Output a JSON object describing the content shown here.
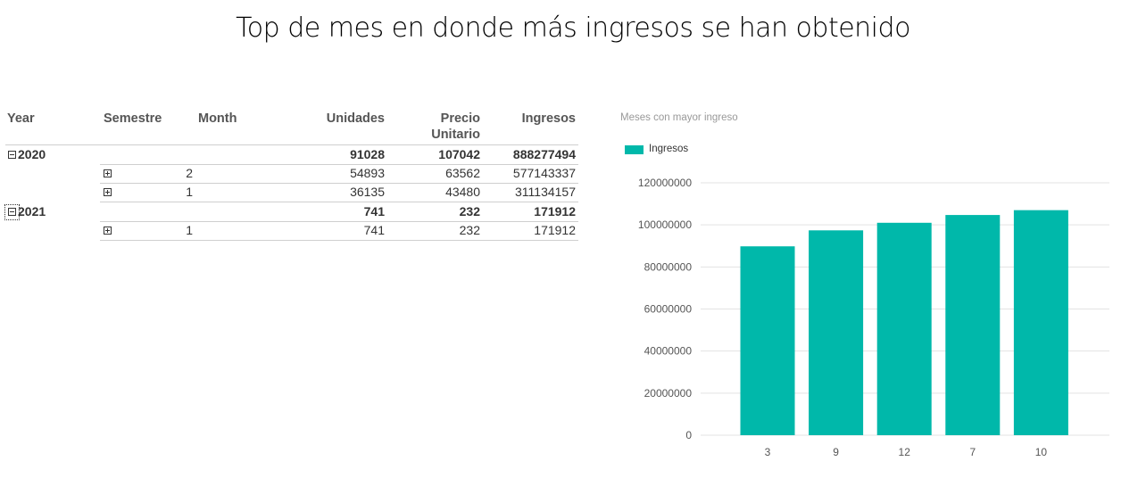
{
  "title": "Top de mes en donde más ingresos se han obtenido",
  "pivot": {
    "headers": {
      "year": "Year",
      "semestre": "Semestre",
      "month": "Month",
      "unidades": "Unidades",
      "precio_line1": "Precio",
      "precio_line2": "Unitario",
      "ingresos": "Ingresos"
    },
    "rows": [
      {
        "year": "2020",
        "semestre": "",
        "unidades": "91028",
        "precio": "107042",
        "ingresos": "888277494"
      },
      {
        "year": "",
        "semestre": "2",
        "unidades": "54893",
        "precio": "63562",
        "ingresos": "577143337"
      },
      {
        "year": "",
        "semestre": "1",
        "unidades": "36135",
        "precio": "43480",
        "ingresos": "311134157"
      },
      {
        "year": "2021",
        "semestre": "",
        "unidades": "741",
        "precio": "232",
        "ingresos": "171912"
      },
      {
        "year": "",
        "semestre": "1",
        "unidades": "741",
        "precio": "232",
        "ingresos": "171912"
      }
    ]
  },
  "chart_data": {
    "type": "bar",
    "title": "Meses con mayor ingreso",
    "categories": [
      "3",
      "9",
      "12",
      "7",
      "10"
    ],
    "series": [
      {
        "name": "Ingresos",
        "values": [
          89800000,
          97400000,
          101000000,
          104700000,
          107000000
        ]
      }
    ],
    "ylim": [
      0,
      120000000
    ],
    "yticks": [
      "0",
      "20000000",
      "40000000",
      "60000000",
      "80000000",
      "100000000",
      "120000000"
    ],
    "grid": true,
    "legend": "top-left",
    "color": "#00B8AA"
  }
}
